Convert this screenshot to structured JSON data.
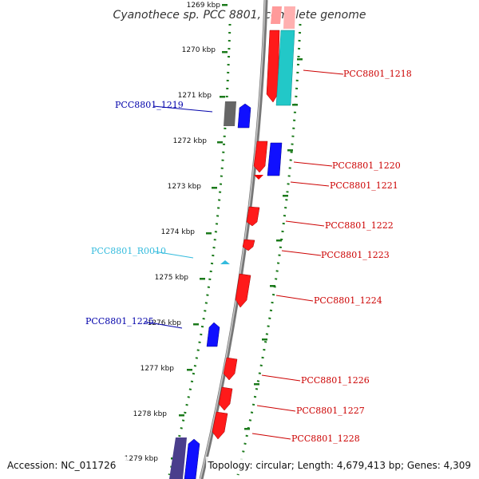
{
  "title": "Cyanothece sp. PCC 8801, complete genome",
  "accession": "Accession: NC_011726",
  "topology": "Topology: circular; Length: 4,679,413 bp; Genes: 4,309",
  "colors": {
    "backbone": "#8a8a8a",
    "tick_dots": "#1b7a1b",
    "forward_gene": "#ff0000",
    "reverse_gene": "#0000ff",
    "forward_label": "#cc0000",
    "reverse_label": "#0000aa",
    "rna": "#33bbdd",
    "cyan_feature": "#22c7c7",
    "pink_feature": "#ffaaaa",
    "gray_feature": "#666666",
    "slate_feature": "#4a3e8c"
  },
  "ticks": [
    "1269 kbp",
    "1270 kbp",
    "1271 kbp",
    "1272 kbp",
    "1273 kbp",
    "1274 kbp",
    "1275 kbp",
    "1276 kbp",
    "1277 kbp",
    "1278 kbp",
    "1279 kbp"
  ],
  "labels": {
    "pcc1218": "PCC8801_1218",
    "pcc1219": "PCC8801_1219",
    "pcc1220": "PCC8801_1220",
    "pcc1221": "PCC8801_1221",
    "pcc1222": "PCC8801_1222",
    "pcc1223": "PCC8801_1223",
    "r0010": "PCC8801_R0010",
    "pcc1224": "PCC8801_1224",
    "pcc1225": "PCC8801_1225",
    "pcc1226": "PCC8801_1226",
    "pcc1227": "PCC8801_1227",
    "pcc1228": "PCC8801_1228"
  }
}
